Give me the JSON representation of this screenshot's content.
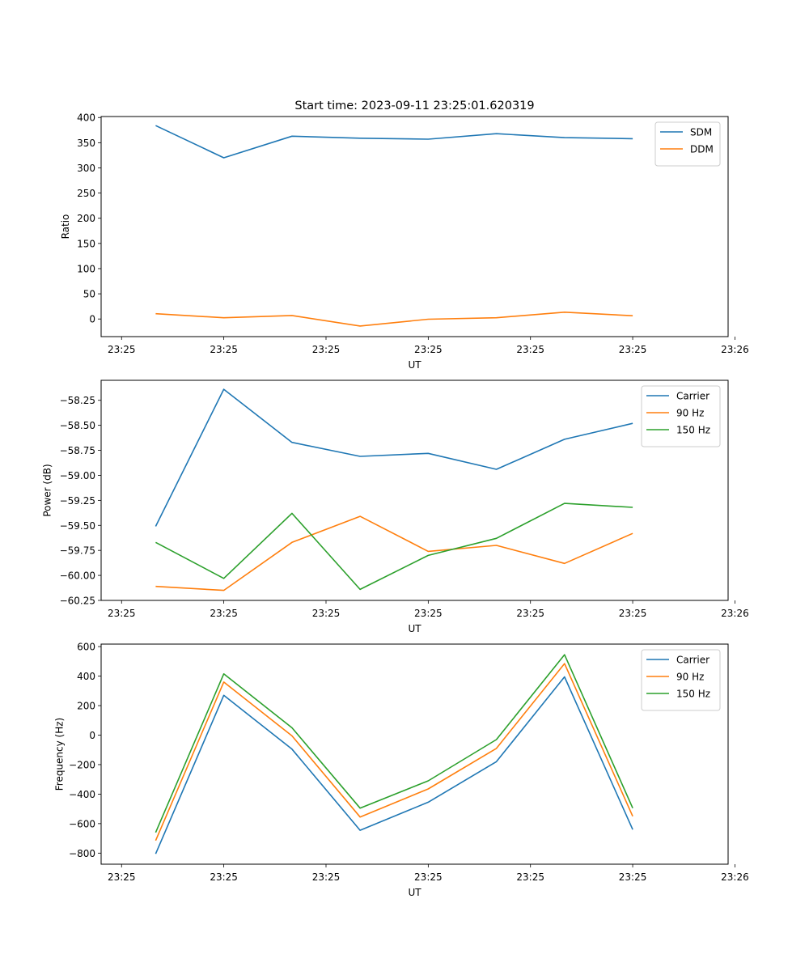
{
  "figure": {
    "title": "Start time: 2023-09-11 23:25:01.620319"
  },
  "colors": {
    "blue": "#1f77b4",
    "orange": "#ff7f0e",
    "green": "#2ca02c"
  },
  "chart_data": [
    {
      "type": "line",
      "title": "Start time: 2023-09-11 23:25:01.620319",
      "xlabel": "UT",
      "ylabel": "Ratio",
      "x": [
        1,
        2,
        3,
        4,
        5,
        6,
        7,
        8
      ],
      "xlim": [
        0.2,
        9.4
      ],
      "xticks": [
        0.5,
        2.0,
        3.5,
        5.0,
        6.5,
        8.0,
        9.5
      ],
      "xtick_labels": [
        "23:25",
        "23:25",
        "23:25",
        "23:25",
        "23:25",
        "23:25",
        "23:26"
      ],
      "ylim": [
        -35,
        402
      ],
      "yticks": [
        0,
        50,
        100,
        150,
        200,
        250,
        300,
        350,
        400
      ],
      "ytick_labels": [
        "0",
        "50",
        "100",
        "150",
        "200",
        "250",
        "300",
        "350",
        "400"
      ],
      "legend": "top-right",
      "series": [
        {
          "name": "SDM",
          "color": "#1f77b4",
          "values": [
            384,
            320,
            363,
            359,
            357,
            368,
            360,
            358
          ]
        },
        {
          "name": "DDM",
          "color": "#ff7f0e",
          "values": [
            10.5,
            2.5,
            7,
            -14,
            -0.5,
            2.5,
            13.5,
            6.5
          ]
        }
      ]
    },
    {
      "type": "line",
      "title": "",
      "xlabel": "UT",
      "ylabel": "Power (dB)",
      "x": [
        1,
        2,
        3,
        4,
        5,
        6,
        7,
        8
      ],
      "xlim": [
        0.2,
        9.4
      ],
      "xticks": [
        0.5,
        2.0,
        3.5,
        5.0,
        6.5,
        8.0,
        9.5
      ],
      "xtick_labels": [
        "23:25",
        "23:25",
        "23:25",
        "23:25",
        "23:25",
        "23:25",
        "23:26"
      ],
      "ylim": [
        -60.25,
        -58.05
      ],
      "yticks": [
        -60.25,
        -60.0,
        -59.75,
        -59.5,
        -59.25,
        -59.0,
        -58.75,
        -58.5,
        -58.25
      ],
      "ytick_labels": [
        "−60.25",
        "−60.00",
        "−59.75",
        "−59.50",
        "−59.25",
        "−59.00",
        "−58.75",
        "−58.50",
        "−58.25"
      ],
      "legend": "top-right",
      "series": [
        {
          "name": "Carrier",
          "color": "#1f77b4",
          "values": [
            -59.51,
            -58.14,
            -58.67,
            -58.81,
            -58.78,
            -58.94,
            -58.64,
            -58.48
          ]
        },
        {
          "name": "90 Hz",
          "color": "#ff7f0e",
          "values": [
            -60.11,
            -60.15,
            -59.67,
            -59.41,
            -59.76,
            -59.7,
            -59.88,
            -59.58
          ]
        },
        {
          "name": "150 Hz",
          "color": "#2ca02c",
          "values": [
            -59.67,
            -60.03,
            -59.38,
            -60.14,
            -59.8,
            -59.63,
            -59.28,
            -59.32
          ]
        }
      ]
    },
    {
      "type": "line",
      "title": "",
      "xlabel": "UT",
      "ylabel": "Frequency (Hz)",
      "x": [
        1,
        2,
        3,
        4,
        5,
        6,
        7,
        8
      ],
      "xlim": [
        0.2,
        9.4
      ],
      "xticks": [
        0.5,
        2.0,
        3.5,
        5.0,
        6.5,
        8.0,
        9.5
      ],
      "xtick_labels": [
        "23:25",
        "23:25",
        "23:25",
        "23:25",
        "23:25",
        "23:25",
        "23:26"
      ],
      "ylim": [
        -875,
        617
      ],
      "yticks": [
        -800,
        -600,
        -400,
        -200,
        0,
        200,
        400,
        600
      ],
      "ytick_labels": [
        "−800",
        "−600",
        "−400",
        "−200",
        "0",
        "200",
        "400",
        "600"
      ],
      "legend": "top-right",
      "series": [
        {
          "name": "Carrier",
          "color": "#1f77b4",
          "values": [
            -805,
            270,
            -95,
            -645,
            -455,
            -180,
            395,
            -640
          ]
        },
        {
          "name": "90 Hz",
          "color": "#ff7f0e",
          "values": [
            -715,
            360,
            -5,
            -555,
            -365,
            -90,
            485,
            -550
          ]
        },
        {
          "name": "150 Hz",
          "color": "#2ca02c",
          "values": [
            -660,
            415,
            50,
            -495,
            -310,
            -30,
            545,
            -495
          ]
        }
      ]
    }
  ]
}
